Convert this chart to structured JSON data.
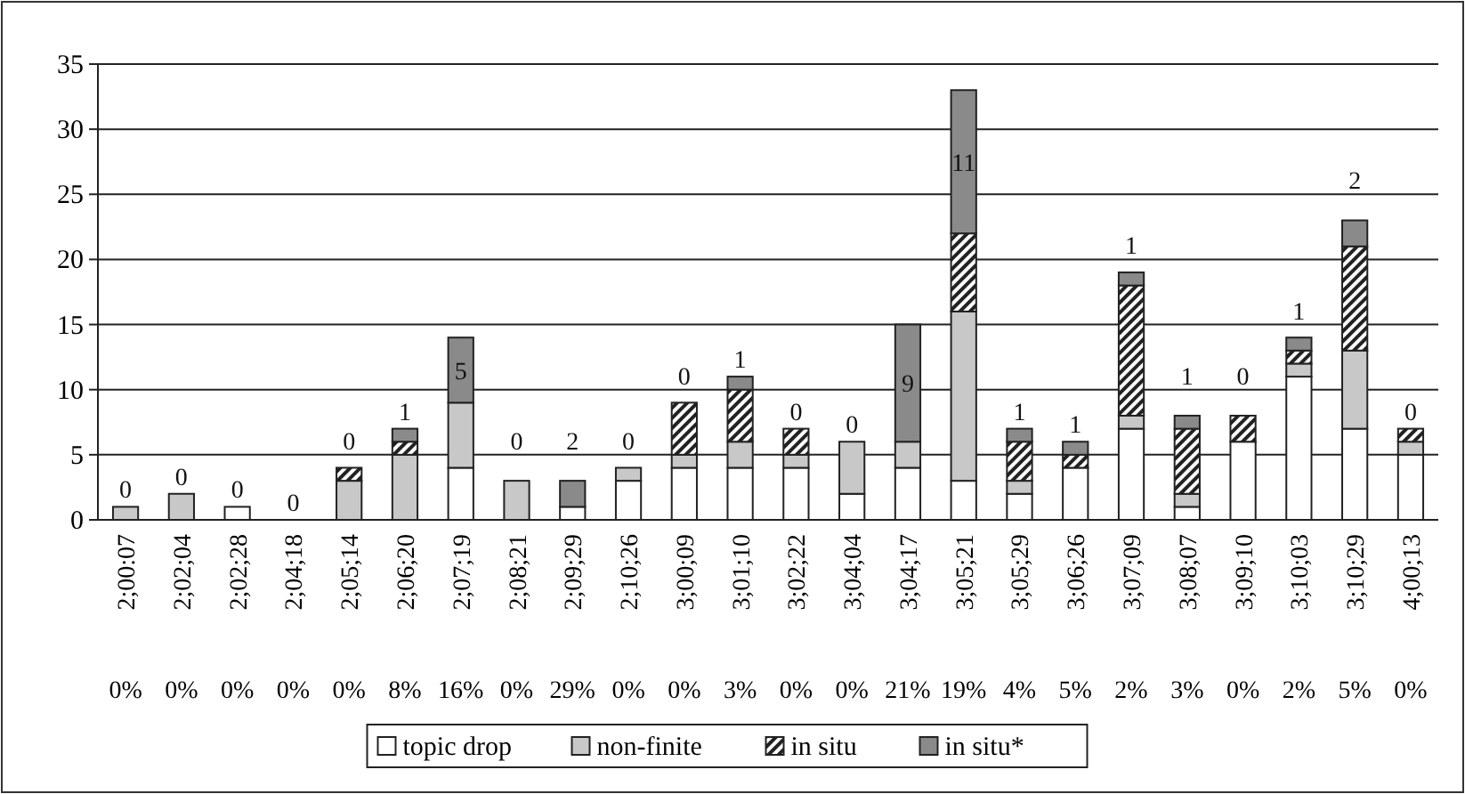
{
  "chart_data": {
    "type": "bar",
    "stacked": true,
    "categories": [
      "2;00:07",
      "2;02;04",
      "2;02;28",
      "2;04;18",
      "2;05;14",
      "2;06;20",
      "2;07;19",
      "2;08;21",
      "2;09;29",
      "2;10;26",
      "3;00;09",
      "3;01;10",
      "3;02;22",
      "3;04;04",
      "3;04;17",
      "3;05;21",
      "3;05;29",
      "3;06;26",
      "3;07;09",
      "3;08;07",
      "3;09;10",
      "3;10;03",
      "3;10;29",
      "4;00;13"
    ],
    "series": [
      {
        "name": "topic drop",
        "color": "#ffffff",
        "values": [
          0,
          0,
          1,
          0,
          0,
          0,
          4,
          0,
          1,
          3,
          4,
          4,
          4,
          2,
          4,
          3,
          2,
          4,
          7,
          1,
          6,
          11,
          7,
          5
        ]
      },
      {
        "name": "non-finite",
        "color": "#c8c8c8",
        "values": [
          1,
          2,
          0,
          0,
          3,
          5,
          5,
          3,
          0,
          1,
          1,
          2,
          1,
          4,
          2,
          13,
          1,
          0,
          1,
          1,
          0,
          1,
          6,
          1
        ]
      },
      {
        "name": "in situ",
        "color": "#222222",
        "values": [
          0,
          0,
          0,
          0,
          1,
          1,
          0,
          0,
          0,
          0,
          4,
          4,
          2,
          0,
          0,
          6,
          3,
          1,
          10,
          5,
          2,
          1,
          8,
          1
        ]
      },
      {
        "name": "in situ*",
        "color": "#8a8a8a",
        "values": [
          0,
          0,
          0,
          0,
          0,
          1,
          5,
          0,
          2,
          0,
          0,
          1,
          0,
          0,
          9,
          11,
          1,
          1,
          1,
          1,
          0,
          1,
          2,
          0
        ],
        "value_labels": [
          "0",
          "0",
          "0",
          "0",
          "0",
          "1",
          "5",
          "0",
          "2",
          "0",
          "0",
          "1",
          "0",
          "0",
          "9",
          "11",
          "1",
          "1",
          "1",
          "1",
          "0",
          "1",
          "2",
          "0"
        ]
      }
    ],
    "ylim": [
      0,
      35
    ],
    "yticks": [
      0,
      5,
      10,
      15,
      20,
      25,
      30,
      35
    ],
    "grid": "y",
    "legend": "bottom",
    "annotations": [
      "0%",
      "0%",
      "0%",
      "0%",
      "0%",
      "8%",
      "16%",
      "0%",
      "29%",
      "0%",
      "0%",
      "3%",
      "0%",
      "0%",
      "21%",
      "19%",
      "4%",
      "5%",
      "2%",
      "3%",
      "0%",
      "2%",
      "5%",
      "0%"
    ]
  }
}
